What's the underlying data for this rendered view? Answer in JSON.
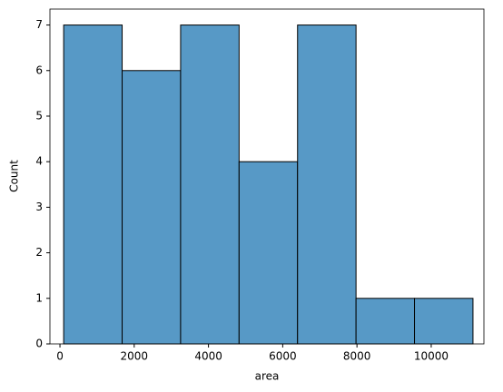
{
  "chart_data": {
    "type": "histogram",
    "bins": [
      100,
      1675,
      3250,
      4825,
      6400,
      7975,
      9550,
      11125
    ],
    "values": [
      7,
      6,
      7,
      4,
      7,
      1,
      1
    ],
    "color": "#5799c6",
    "xlabel": "area",
    "ylabel": "Count",
    "xlim": [
      -270,
      11420
    ],
    "xticks": [
      0,
      2000,
      4000,
      6000,
      8000,
      10000
    ],
    "ylim": [
      0,
      7.35
    ],
    "yticks": [
      0,
      1,
      2,
      3,
      4,
      5,
      6,
      7
    ]
  }
}
